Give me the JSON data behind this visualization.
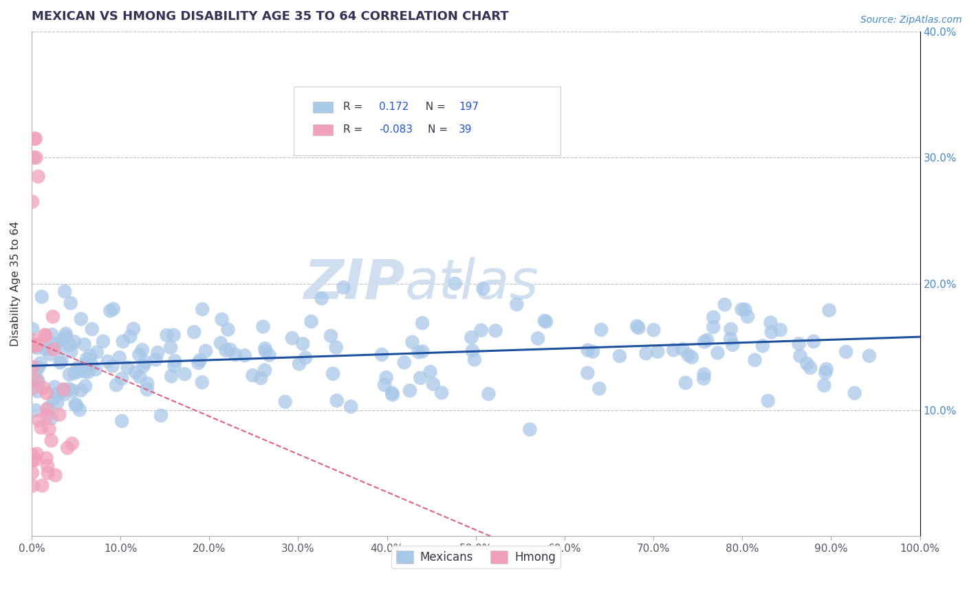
{
  "title": "MEXICAN VS HMONG DISABILITY AGE 35 TO 64 CORRELATION CHART",
  "source_text": "Source: ZipAtlas.com",
  "ylabel": "Disability Age 35 to 64",
  "xlim": [
    0,
    1.0
  ],
  "ylim": [
    0,
    0.4
  ],
  "xticks": [
    0.0,
    0.1,
    0.2,
    0.3,
    0.4,
    0.5,
    0.6,
    0.7,
    0.8,
    0.9,
    1.0
  ],
  "xticklabels": [
    "0.0%",
    "10.0%",
    "20.0%",
    "30.0%",
    "40.0%",
    "50.0%",
    "60.0%",
    "70.0%",
    "80.0%",
    "90.0%",
    "100.0%"
  ],
  "yticks": [
    0.1,
    0.2,
    0.3,
    0.4
  ],
  "yticklabels": [
    "10.0%",
    "20.0%",
    "30.0%",
    "40.0%"
  ],
  "blue_R": 0.172,
  "blue_N": 197,
  "pink_R": -0.083,
  "pink_N": 39,
  "blue_color": "#A8C8E8",
  "pink_color": "#F0A0B8",
  "blue_line_color": "#1E50A0",
  "pink_line_color": "#E06080",
  "watermark_zip": "ZIP",
  "watermark_atlas": "atlas",
  "watermark_color": "#D0DFF0",
  "legend_label_blue": "Mexicans",
  "legend_label_pink": "Hmong",
  "title_color": "#333355",
  "grid_color": "#BBBBCC",
  "tick_color_x": "#555566",
  "tick_color_y": "#4488CC",
  "source_color": "#4488CC",
  "stats_box_blue_r": "0.172",
  "stats_box_blue_n": "197",
  "stats_box_pink_r": "-0.083",
  "stats_box_pink_n": "39"
}
